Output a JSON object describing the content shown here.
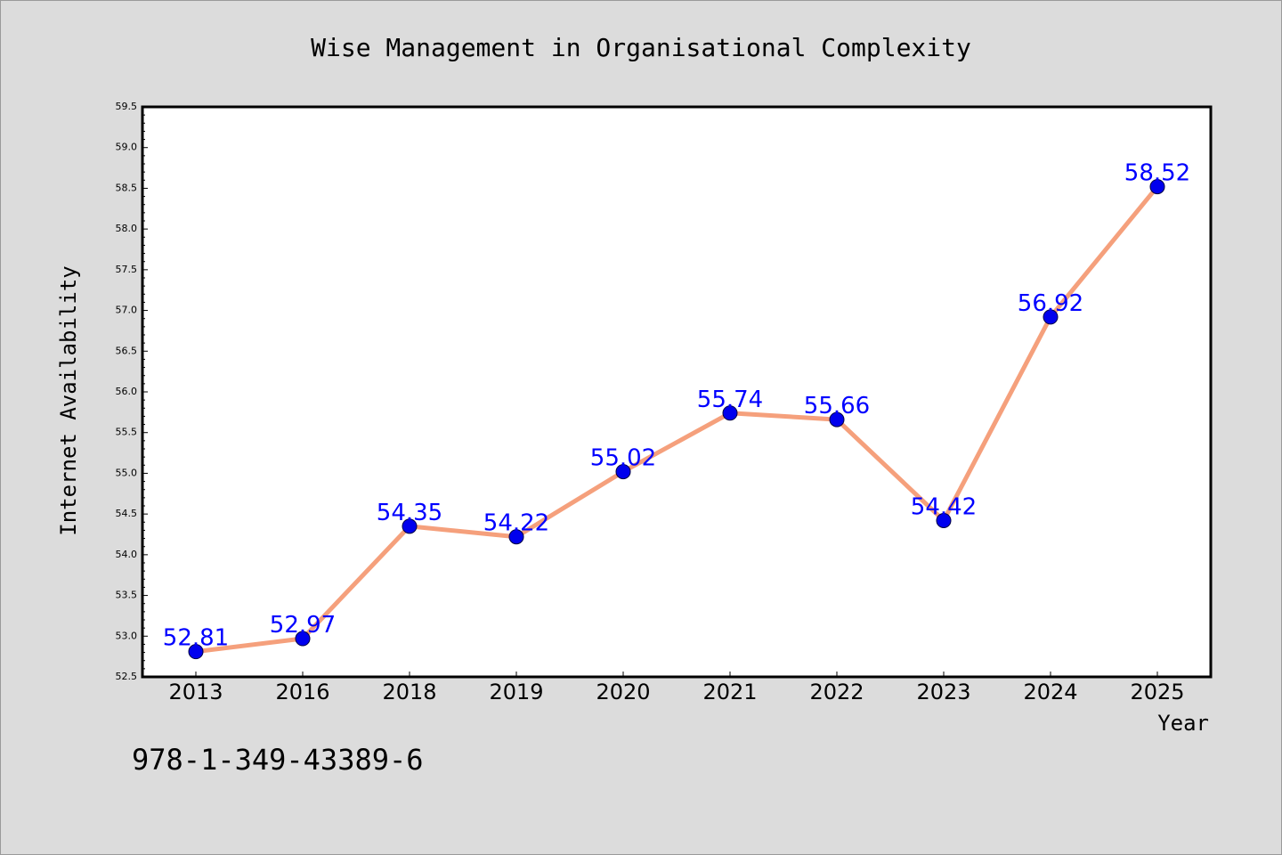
{
  "chart_data": {
    "type": "line",
    "title": "Wise Management in Organisational Complexity",
    "xlabel": "Year",
    "ylabel": "Internet Availability",
    "categories": [
      "2013",
      "2016",
      "2018",
      "2019",
      "2020",
      "2021",
      "2022",
      "2023",
      "2024",
      "2025"
    ],
    "series": [
      {
        "values": [
          52.81,
          52.97,
          54.35,
          54.22,
          55.02,
          55.74,
          55.66,
          54.42,
          56.92,
          58.52
        ]
      }
    ],
    "data_labels": [
      "52.81",
      "52.97",
      "54.35",
      "54.22",
      "55.02",
      "55.74",
      "55.66",
      "54.42",
      "56.92",
      "58.52"
    ],
    "ylim": [
      52.5,
      59.5
    ],
    "yticks": [
      "52.5",
      "53.0",
      "53.5",
      "54.0",
      "54.5",
      "55.0",
      "55.5",
      "56.0",
      "56.5",
      "57.0",
      "57.5",
      "58.0",
      "58.5",
      "59.0",
      "59.5"
    ],
    "grid": false,
    "legend": "none",
    "colors": {
      "line": "#f5a07c",
      "marker": "#0000ee",
      "data_label": "#0000ff",
      "background": "#dcdcdc",
      "plot_background": "#ffffff"
    }
  },
  "footer": {
    "isbn": "978-1-349-43389-6"
  }
}
